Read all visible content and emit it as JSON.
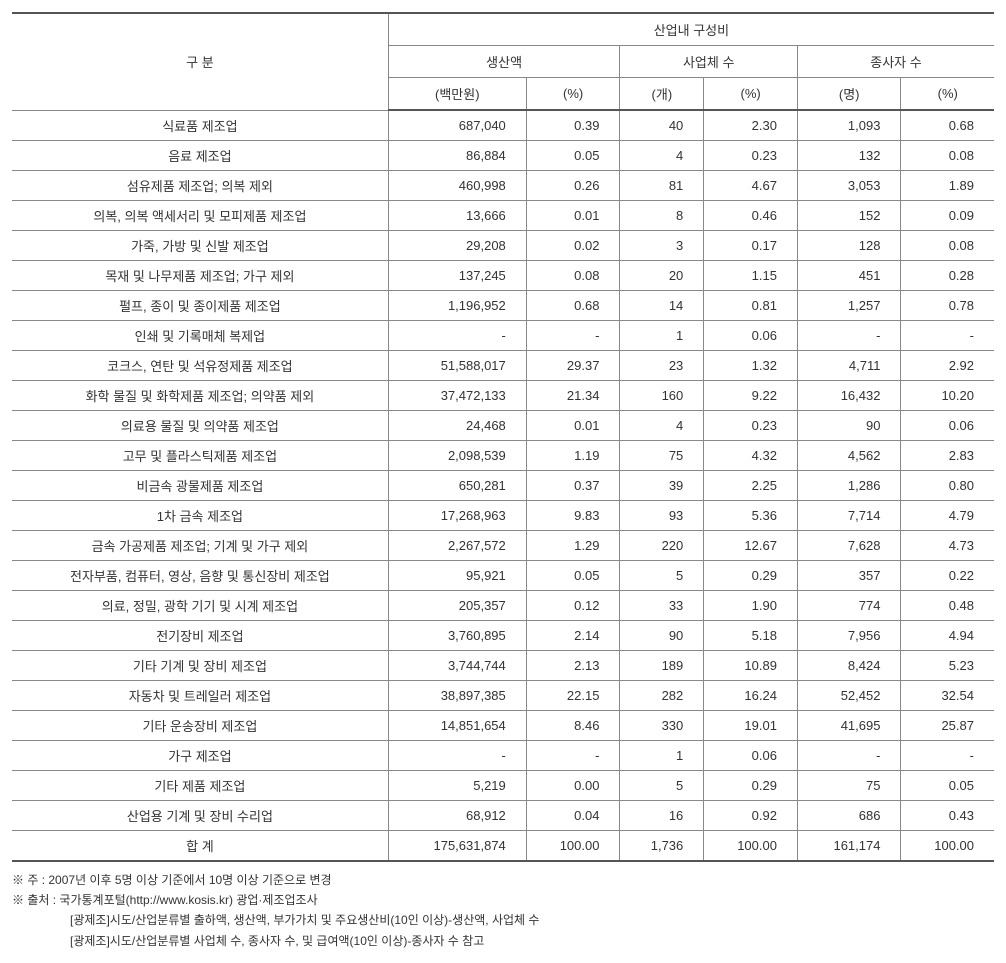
{
  "table": {
    "header": {
      "col_category": "구 분",
      "group_title": "산업내 구성비",
      "group1": "생산액",
      "group1_unit": "(백만원)",
      "group1_pct": "(%)",
      "group2": "사업체 수",
      "group2_unit": "(개)",
      "group2_pct": "(%)",
      "group3": "종사자 수",
      "group3_unit": "(명)",
      "group3_pct": "(%)"
    },
    "rows": [
      {
        "label": "식료품 제조업",
        "prod": "687,040",
        "prod_pct": "0.39",
        "biz": "40",
        "biz_pct": "2.30",
        "emp": "1,093",
        "emp_pct": "0.68"
      },
      {
        "label": "음료 제조업",
        "prod": "86,884",
        "prod_pct": "0.05",
        "biz": "4",
        "biz_pct": "0.23",
        "emp": "132",
        "emp_pct": "0.08"
      },
      {
        "label": "섬유제품 제조업; 의복 제외",
        "prod": "460,998",
        "prod_pct": "0.26",
        "biz": "81",
        "biz_pct": "4.67",
        "emp": "3,053",
        "emp_pct": "1.89"
      },
      {
        "label": "의복, 의복 액세서리 및 모피제품 제조업",
        "prod": "13,666",
        "prod_pct": "0.01",
        "biz": "8",
        "biz_pct": "0.46",
        "emp": "152",
        "emp_pct": "0.09"
      },
      {
        "label": "가죽, 가방 및 신발 제조업",
        "prod": "29,208",
        "prod_pct": "0.02",
        "biz": "3",
        "biz_pct": "0.17",
        "emp": "128",
        "emp_pct": "0.08"
      },
      {
        "label": "목재 및 나무제품 제조업; 가구 제외",
        "prod": "137,245",
        "prod_pct": "0.08",
        "biz": "20",
        "biz_pct": "1.15",
        "emp": "451",
        "emp_pct": "0.28"
      },
      {
        "label": "펄프, 종이 및 종이제품 제조업",
        "prod": "1,196,952",
        "prod_pct": "0.68",
        "biz": "14",
        "biz_pct": "0.81",
        "emp": "1,257",
        "emp_pct": "0.78"
      },
      {
        "label": "인쇄 및 기록매체 복제업",
        "prod": "-",
        "prod_pct": "-",
        "biz": "1",
        "biz_pct": "0.06",
        "emp": "-",
        "emp_pct": "-"
      },
      {
        "label": "코크스, 연탄 및 석유정제품 제조업",
        "prod": "51,588,017",
        "prod_pct": "29.37",
        "biz": "23",
        "biz_pct": "1.32",
        "emp": "4,711",
        "emp_pct": "2.92"
      },
      {
        "label": "화학 물질 및 화학제품 제조업; 의약품 제외",
        "prod": "37,472,133",
        "prod_pct": "21.34",
        "biz": "160",
        "biz_pct": "9.22",
        "emp": "16,432",
        "emp_pct": "10.20"
      },
      {
        "label": "의료용 물질 및 의약품 제조업",
        "prod": "24,468",
        "prod_pct": "0.01",
        "biz": "4",
        "biz_pct": "0.23",
        "emp": "90",
        "emp_pct": "0.06"
      },
      {
        "label": "고무 및 플라스틱제품 제조업",
        "prod": "2,098,539",
        "prod_pct": "1.19",
        "biz": "75",
        "biz_pct": "4.32",
        "emp": "4,562",
        "emp_pct": "2.83"
      },
      {
        "label": "비금속 광물제품 제조업",
        "prod": "650,281",
        "prod_pct": "0.37",
        "biz": "39",
        "biz_pct": "2.25",
        "emp": "1,286",
        "emp_pct": "0.80"
      },
      {
        "label": "1차 금속 제조업",
        "prod": "17,268,963",
        "prod_pct": "9.83",
        "biz": "93",
        "biz_pct": "5.36",
        "emp": "7,714",
        "emp_pct": "4.79"
      },
      {
        "label": "금속 가공제품 제조업; 기계 및 가구 제외",
        "prod": "2,267,572",
        "prod_pct": "1.29",
        "biz": "220",
        "biz_pct": "12.67",
        "emp": "7,628",
        "emp_pct": "4.73"
      },
      {
        "label": "전자부품, 컴퓨터, 영상, 음향 및 통신장비 제조업",
        "prod": "95,921",
        "prod_pct": "0.05",
        "biz": "5",
        "biz_pct": "0.29",
        "emp": "357",
        "emp_pct": "0.22"
      },
      {
        "label": "의료, 정밀, 광학 기기 및 시계 제조업",
        "prod": "205,357",
        "prod_pct": "0.12",
        "biz": "33",
        "biz_pct": "1.90",
        "emp": "774",
        "emp_pct": "0.48"
      },
      {
        "label": "전기장비 제조업",
        "prod": "3,760,895",
        "prod_pct": "2.14",
        "biz": "90",
        "biz_pct": "5.18",
        "emp": "7,956",
        "emp_pct": "4.94"
      },
      {
        "label": "기타 기계 및 장비 제조업",
        "prod": "3,744,744",
        "prod_pct": "2.13",
        "biz": "189",
        "biz_pct": "10.89",
        "emp": "8,424",
        "emp_pct": "5.23"
      },
      {
        "label": "자동차 및 트레일러 제조업",
        "prod": "38,897,385",
        "prod_pct": "22.15",
        "biz": "282",
        "biz_pct": "16.24",
        "emp": "52,452",
        "emp_pct": "32.54"
      },
      {
        "label": "기타 운송장비 제조업",
        "prod": "14,851,654",
        "prod_pct": "8.46",
        "biz": "330",
        "biz_pct": "19.01",
        "emp": "41,695",
        "emp_pct": "25.87"
      },
      {
        "label": "가구 제조업",
        "prod": "-",
        "prod_pct": "-",
        "biz": "1",
        "biz_pct": "0.06",
        "emp": "-",
        "emp_pct": "-"
      },
      {
        "label": "기타 제품 제조업",
        "prod": "5,219",
        "prod_pct": "0.00",
        "biz": "5",
        "biz_pct": "0.29",
        "emp": "75",
        "emp_pct": "0.05"
      },
      {
        "label": "산업용 기계 및 장비 수리업",
        "prod": "68,912",
        "prod_pct": "0.04",
        "biz": "16",
        "biz_pct": "0.92",
        "emp": "686",
        "emp_pct": "0.43"
      }
    ],
    "total": {
      "label": "합 계",
      "prod": "175,631,874",
      "prod_pct": "100.00",
      "biz": "1,736",
      "biz_pct": "100.00",
      "emp": "161,174",
      "emp_pct": "100.00"
    }
  },
  "notes": {
    "n1": "※ 주 : 2007년 이후 5명 이상 기준에서 10명 이상 기준으로 변경",
    "n2": "※ 출처 : 국가통계포털(http://www.kosis.kr) 광업·제조업조사",
    "n3": "[광제조]시도/산업분류별 출하액, 생산액, 부가가치 및 주요생산비(10인 이상)-생산액, 사업체 수",
    "n4": "[광제조]시도/산업분류별 사업체 수, 종사자 수, 및 급여액(10인 이상)-종사자 수 참고"
  },
  "style": {
    "font_size_table": 13,
    "font_size_notes": 12,
    "border_color": "#888888",
    "border_strong_color": "#555555",
    "text_color": "#333333",
    "background": "#ffffff"
  }
}
